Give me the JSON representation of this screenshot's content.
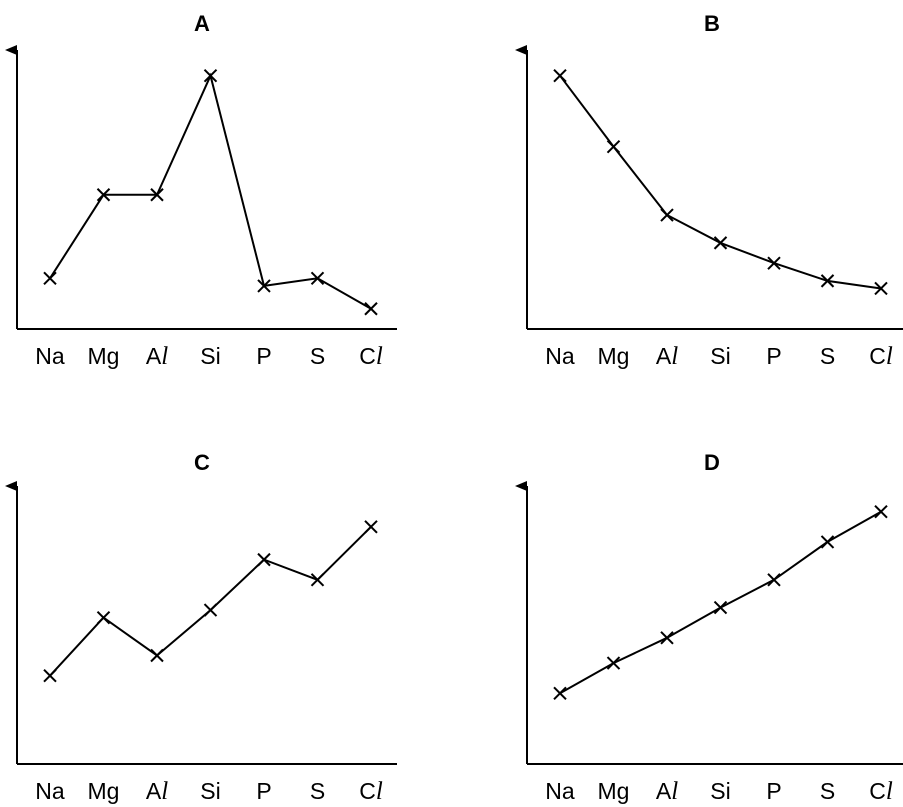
{
  "chart_data": [
    {
      "type": "line",
      "title": "A",
      "categories": [
        "Na",
        "Mg",
        "Al",
        "Si",
        "P",
        "S",
        "Cl"
      ],
      "values": [
        0.2,
        0.53,
        0.53,
        1.0,
        0.17,
        0.2,
        0.08
      ],
      "ylim": [
        0,
        1.07
      ],
      "grid": false
    },
    {
      "type": "line",
      "title": "B",
      "categories": [
        "Na",
        "Mg",
        "Al",
        "Si",
        "P",
        "S",
        "Cl"
      ],
      "values": [
        1.0,
        0.72,
        0.45,
        0.34,
        0.26,
        0.19,
        0.16
      ],
      "ylim": [
        0,
        1.07
      ],
      "grid": false
    },
    {
      "type": "line",
      "title": "C",
      "categories": [
        "Na",
        "Mg",
        "Al",
        "Si",
        "P",
        "S",
        "Cl"
      ],
      "values": [
        0.35,
        0.58,
        0.43,
        0.61,
        0.81,
        0.73,
        0.94
      ],
      "ylim": [
        0,
        1.07
      ],
      "grid": false
    },
    {
      "type": "line",
      "title": "D",
      "categories": [
        "Na",
        "Mg",
        "Al",
        "Si",
        "P",
        "S",
        "Cl"
      ],
      "values": [
        0.28,
        0.4,
        0.5,
        0.62,
        0.73,
        0.88,
        1.0
      ],
      "ylim": [
        0,
        1.07
      ],
      "grid": false
    }
  ]
}
